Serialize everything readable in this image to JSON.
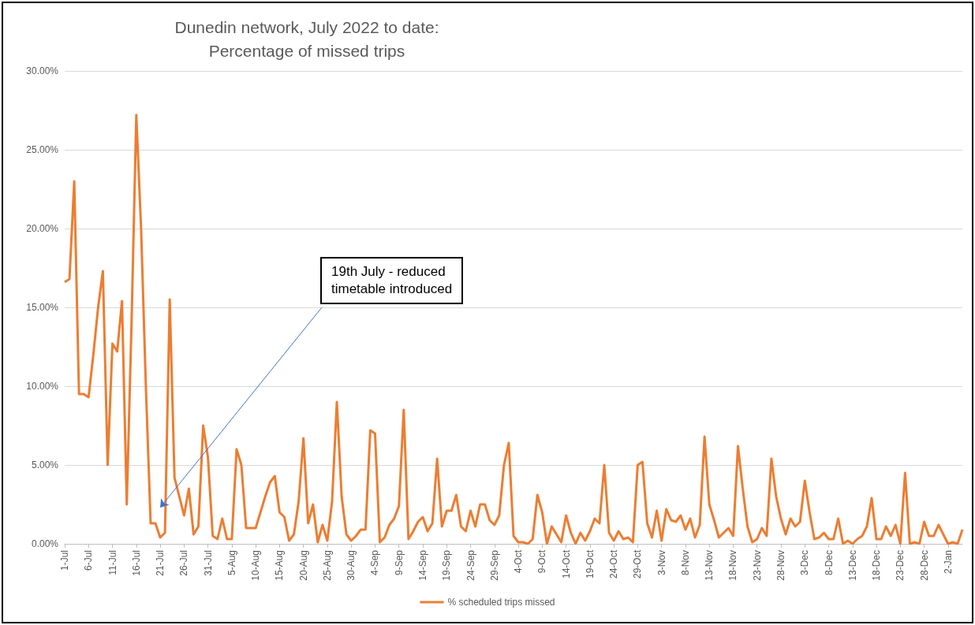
{
  "chart_data": {
    "type": "line",
    "title": "Dunedin network, July 2022 to date:\nPercentage of missed trips",
    "categories": [
      "1-Jul",
      null,
      null,
      null,
      null,
      "6-Jul",
      null,
      null,
      null,
      null,
      "11-Jul",
      null,
      null,
      null,
      null,
      "16-Jul",
      null,
      null,
      null,
      null,
      "21-Jul",
      null,
      null,
      null,
      null,
      "26-Jul",
      null,
      null,
      null,
      null,
      "31-Jul",
      null,
      null,
      null,
      null,
      "5-Aug",
      null,
      null,
      null,
      null,
      "10-Aug",
      null,
      null,
      null,
      null,
      "15-Aug",
      null,
      null,
      null,
      null,
      "20-Aug",
      null,
      null,
      null,
      null,
      "25-Aug",
      null,
      null,
      null,
      null,
      "30-Aug",
      null,
      null,
      null,
      null,
      "4-Sep",
      null,
      null,
      null,
      null,
      "9-Sep",
      null,
      null,
      null,
      null,
      "14-Sep",
      null,
      null,
      null,
      null,
      "19-Sep",
      null,
      null,
      null,
      null,
      "24-Sep",
      null,
      null,
      null,
      null,
      "29-Sep",
      null,
      null,
      null,
      null,
      "4-Oct",
      null,
      null,
      null,
      null,
      "9-Oct",
      null,
      null,
      null,
      null,
      "14-Oct",
      null,
      null,
      null,
      null,
      "19-Oct",
      null,
      null,
      null,
      null,
      "24-Oct",
      null,
      null,
      null,
      null,
      "29-Oct",
      null,
      null,
      null,
      null,
      "3-Nov",
      null,
      null,
      null,
      null,
      "8-Nov",
      null,
      null,
      null,
      null,
      "13-Nov",
      null,
      null,
      null,
      null,
      "18-Nov",
      null,
      null,
      null,
      null,
      "23-Nov",
      null,
      null,
      null,
      null,
      "28-Nov",
      null,
      null,
      null,
      null,
      "3-Dec",
      null,
      null,
      null,
      null,
      "8-Dec",
      null,
      null,
      null,
      null,
      "13-Dec",
      null,
      null,
      null,
      null,
      "18-Dec",
      null,
      null,
      null,
      null,
      "23-Dec",
      null,
      null,
      null,
      null,
      "28-Dec",
      null,
      null,
      null,
      null,
      "2-Jan",
      null,
      null,
      null
    ],
    "series": [
      {
        "name": "% scheduled trips missed",
        "color": "#ed7d31",
        "values": [
          16.6,
          16.8,
          23.0,
          9.5,
          9.5,
          9.3,
          12,
          15,
          17.3,
          5.0,
          12.7,
          12.2,
          15.4,
          2.5,
          14,
          27.2,
          20,
          10,
          1.3,
          1.3,
          0.4,
          0.7,
          15.5,
          4.2,
          3,
          1.8,
          3.5,
          0.6,
          1.1,
          7.5,
          5.5,
          0.5,
          0.3,
          1.6,
          0.3,
          0.3,
          6.0,
          5.0,
          1.0,
          1.0,
          1.0,
          2.0,
          3.0,
          3.9,
          4.3,
          2.0,
          1.7,
          0.2,
          0.6,
          2.7,
          6.7,
          1.3,
          2.5,
          0.1,
          1.2,
          0.2,
          2.7,
          9.0,
          3.0,
          0.6,
          0.2,
          0.5,
          0.9,
          0.9,
          7.2,
          7.0,
          0.1,
          0.4,
          1.2,
          1.6,
          2.4,
          8.5,
          0.3,
          0.8,
          1.4,
          1.7,
          0.8,
          1.3,
          5.4,
          1.1,
          2.1,
          2.1,
          3.1,
          1.1,
          0.8,
          2.1,
          1.1,
          2.5,
          2.5,
          1.5,
          1.2,
          1.8,
          5.0,
          6.4,
          0.5,
          0.1,
          0.1,
          0.0,
          0.3,
          3.1,
          2.0,
          0.0,
          1.1,
          0.6,
          0.1,
          1.8,
          0.7,
          0.0,
          0.7,
          0.2,
          0.8,
          1.6,
          1.3,
          5.0,
          0.7,
          0.2,
          0.8,
          0.3,
          0.4,
          0.1,
          5.0,
          5.2,
          1.3,
          0.4,
          2.1,
          0.2,
          2.2,
          1.5,
          1.4,
          1.8,
          0.9,
          1.6,
          0.4,
          1.2,
          6.8,
          2.5,
          1.5,
          0.4,
          0.7,
          1.0,
          0.5,
          6.2,
          3.5,
          1.1,
          0.1,
          0.3,
          1.0,
          0.5,
          5.4,
          3.0,
          1.6,
          0.6,
          1.6,
          1.1,
          1.4,
          4.0,
          2.0,
          0.3,
          0.4,
          0.7,
          0.3,
          0.3,
          1.6,
          0.0,
          0.2,
          0.0,
          0.3,
          0.5,
          1.1,
          2.9,
          0.3,
          0.3,
          1.1,
          0.5,
          1.2,
          0.0,
          4.5,
          0.0,
          0.1,
          0.0,
          1.4,
          0.5,
          0.5,
          1.2,
          0.6,
          0.0,
          0.1,
          0.0,
          0.9
        ]
      }
    ],
    "ylim": [
      0,
      30
    ],
    "yticks": [
      {
        "value": 0,
        "label": "0.00%"
      },
      {
        "value": 5,
        "label": "5.00%"
      },
      {
        "value": 10,
        "label": "10.00%"
      },
      {
        "value": 15,
        "label": "15.00%"
      },
      {
        "value": 20,
        "label": "20.00%"
      },
      {
        "value": 25,
        "label": "25.00%"
      },
      {
        "value": 30,
        "label": "30.00%"
      }
    ],
    "annotations": [
      {
        "text": "19th July - reduced\ntimetable introduced",
        "x": "21-Jul",
        "y": 2.3
      }
    ],
    "grid": "y",
    "legend": "bottom",
    "marker": "none",
    "line_style": "solid"
  }
}
